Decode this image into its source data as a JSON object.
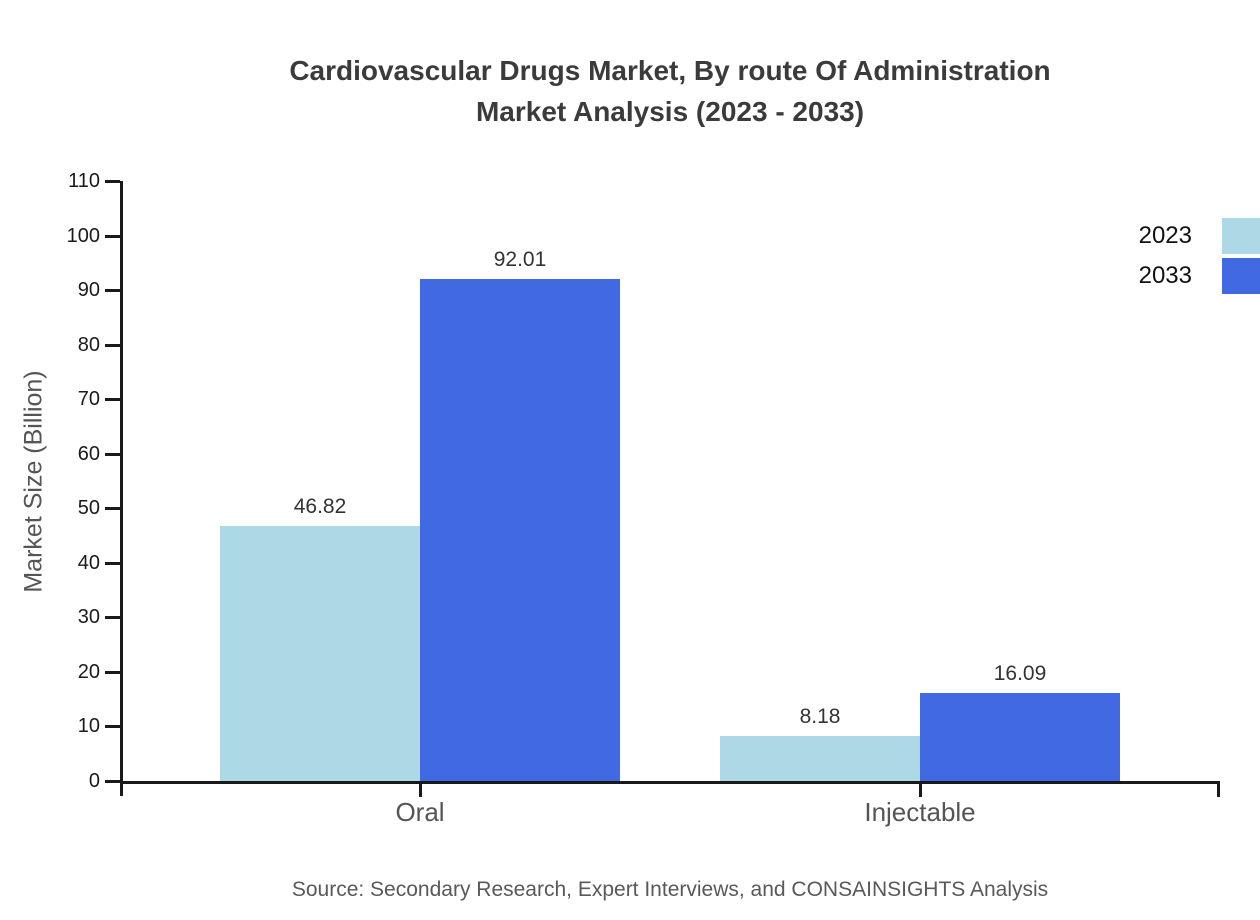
{
  "title": {
    "line1": "Cardiovascular Drugs Market, By route Of Administration",
    "line2": "Market Analysis (2023 - 2033)"
  },
  "source_note": "Source: Secondary Research, Expert Interviews, and CONSAINSIGHTS Analysis",
  "chart_data": {
    "type": "bar",
    "title": "Cardiovascular Drugs Market, By route Of Administration Market Analysis (2023 - 2033)",
    "categories": [
      "Oral",
      "Injectable"
    ],
    "series": [
      {
        "name": "2023",
        "values": [
          46.82,
          8.18
        ],
        "labels": [
          "46.82",
          "8.18"
        ],
        "color": "#ADD8E6"
      },
      {
        "name": "2033",
        "values": [
          92.01,
          16.09
        ],
        "labels": [
          "92.01",
          "16.09"
        ],
        "color": "#4169E1"
      }
    ],
    "xlabel": "",
    "ylabel": "Market Size (Billion)",
    "ylim": [
      0,
      110
    ],
    "yticks": [
      0,
      10,
      20,
      30,
      40,
      50,
      60,
      70,
      80,
      90,
      100,
      110
    ],
    "grid": false,
    "legend_position": "top-right",
    "axis_color": "#1a1a1a"
  }
}
